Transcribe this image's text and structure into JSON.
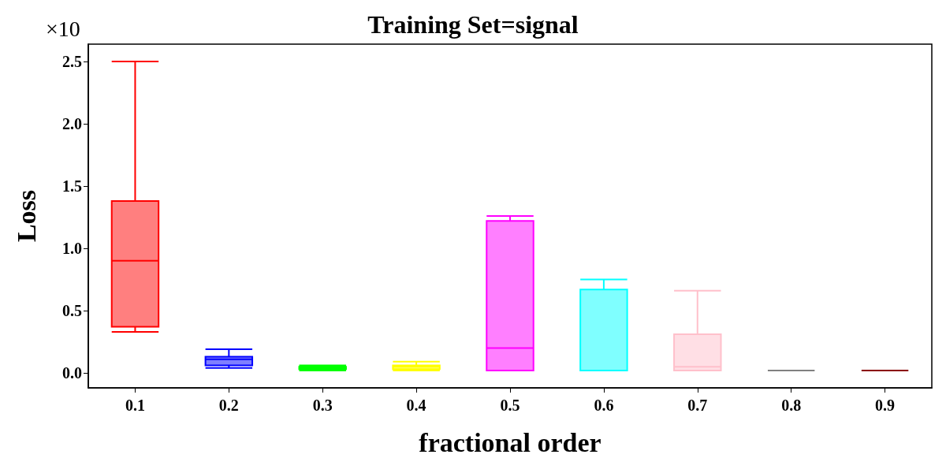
{
  "chart_data": {
    "type": "box",
    "title": "Training Set=signal",
    "xlabel": "fractional order",
    "ylabel": "Loss",
    "annotations": [
      "×10"
    ],
    "categories": [
      "0.1",
      "0.2",
      "0.3",
      "0.4",
      "0.5",
      "0.6",
      "0.7",
      "0.8",
      "0.9"
    ],
    "colors": [
      "#ff0000",
      "#0000ff",
      "#00ff00",
      "#ffff00",
      "#ff00ff",
      "#00ffff",
      "#ffc0cb",
      "#808080",
      "#8b0000"
    ],
    "boxes": [
      {
        "low": 0.33,
        "q1": 0.37,
        "median": 0.9,
        "q3": 1.38,
        "high": 2.5
      },
      {
        "low": 0.04,
        "q1": 0.06,
        "median": 0.11,
        "q3": 0.13,
        "high": 0.19
      },
      {
        "low": 0.02,
        "q1": 0.03,
        "median": 0.04,
        "q3": 0.05,
        "high": 0.06
      },
      {
        "low": 0.02,
        "q1": 0.03,
        "median": 0.05,
        "q3": 0.06,
        "high": 0.09
      },
      {
        "low": 0.02,
        "q1": 0.02,
        "median": 0.2,
        "q3": 1.22,
        "high": 1.26
      },
      {
        "low": 0.02,
        "q1": 0.02,
        "median": 0.02,
        "q3": 0.67,
        "high": 0.75
      },
      {
        "low": 0.02,
        "q1": 0.02,
        "median": 0.05,
        "q3": 0.31,
        "high": 0.66
      },
      {
        "low": 0.02,
        "q1": 0.02,
        "median": 0.02,
        "q3": 0.02,
        "high": 0.02
      },
      {
        "low": 0.02,
        "q1": 0.02,
        "median": 0.02,
        "q3": 0.02,
        "high": 0.02
      }
    ],
    "ylim": [
      -0.12,
      2.64
    ],
    "yticks": [
      {
        "value": 0,
        "label": "0.0"
      },
      0.5,
      {
        "value": 1,
        "label": "1.0"
      },
      1.5,
      {
        "value": 2,
        "label": "2.0"
      },
      2.5
    ],
    "grid": false
  }
}
